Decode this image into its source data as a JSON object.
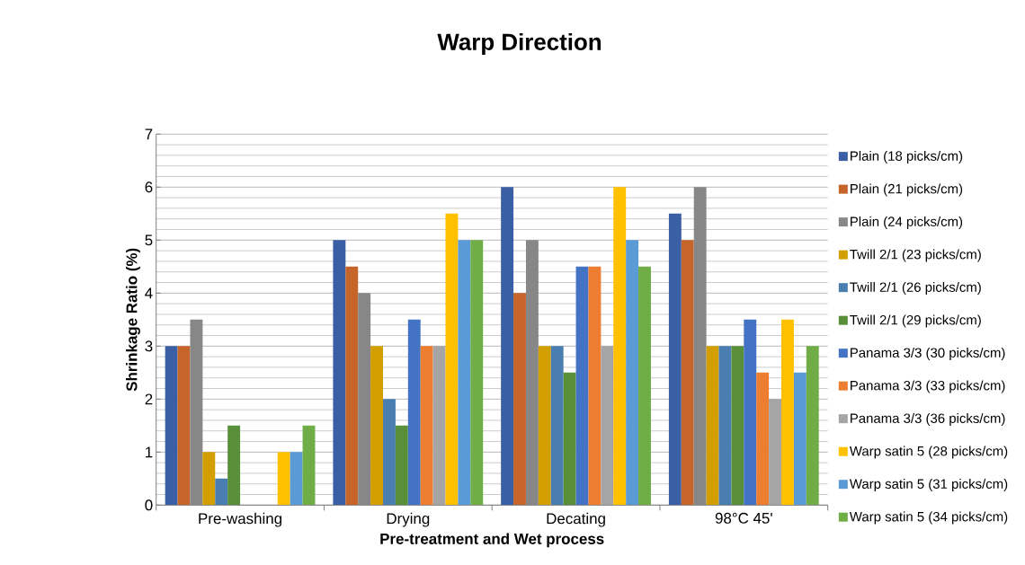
{
  "chart_data": {
    "type": "bar",
    "title": "Warp Direction",
    "xlabel": "Pre-treatment and Wet process",
    "ylabel": "Shrinkage Ratio (%)",
    "categories": [
      "Pre-washing",
      "Drying",
      "Decating",
      "98°C 45'"
    ],
    "series": [
      {
        "name": "Plain (18 picks/cm)",
        "color": "#3a5fa5",
        "values": [
          3,
          5,
          6,
          5.5
        ]
      },
      {
        "name": "Plain (21 picks/cm)",
        "color": "#c5652a",
        "values": [
          3,
          4.5,
          4,
          5
        ]
      },
      {
        "name": "Plain (24 picks/cm)",
        "color": "#878787",
        "values": [
          3.5,
          4,
          5,
          6
        ]
      },
      {
        "name": "Twill 2/1 (23 picks/cm)",
        "color": "#d29e00",
        "values": [
          1,
          3,
          3,
          3
        ]
      },
      {
        "name": "Twill 2/1 (26 picks/cm)",
        "color": "#4a7eb0",
        "values": [
          0.5,
          2,
          3,
          3
        ]
      },
      {
        "name": "Twill 2/1 (29 picks/cm)",
        "color": "#5a8f3a",
        "values": [
          1.5,
          1.5,
          2.5,
          3
        ]
      },
      {
        "name": "Panama 3/3 (30 picks/cm)",
        "color": "#4472c4",
        "values": [
          0,
          3.5,
          4.5,
          3.5
        ]
      },
      {
        "name": "Panama 3/3 (33 picks/cm)",
        "color": "#ed7d31",
        "values": [
          0,
          3,
          4.5,
          2.5
        ]
      },
      {
        "name": "Panama 3/3 (36 picks/cm)",
        "color": "#a5a5a5",
        "values": [
          0,
          3,
          3,
          2
        ]
      },
      {
        "name": "Warp satin 5 (28 picks/cm)",
        "color": "#ffc000",
        "values": [
          1,
          5.5,
          6,
          3.5
        ]
      },
      {
        "name": "Warp satin 5 (31 picks/cm)",
        "color": "#5b9bd5",
        "values": [
          1,
          5,
          5,
          2.5
        ]
      },
      {
        "name": "Warp satin 5 (34 picks/cm)",
        "color": "#70ad47",
        "values": [
          1.5,
          5,
          4.5,
          3
        ]
      }
    ],
    "ylim": [
      0,
      7
    ],
    "yticks": [
      0,
      1,
      2,
      3,
      4,
      5,
      6,
      7
    ],
    "grid": "y",
    "legend": "right"
  }
}
